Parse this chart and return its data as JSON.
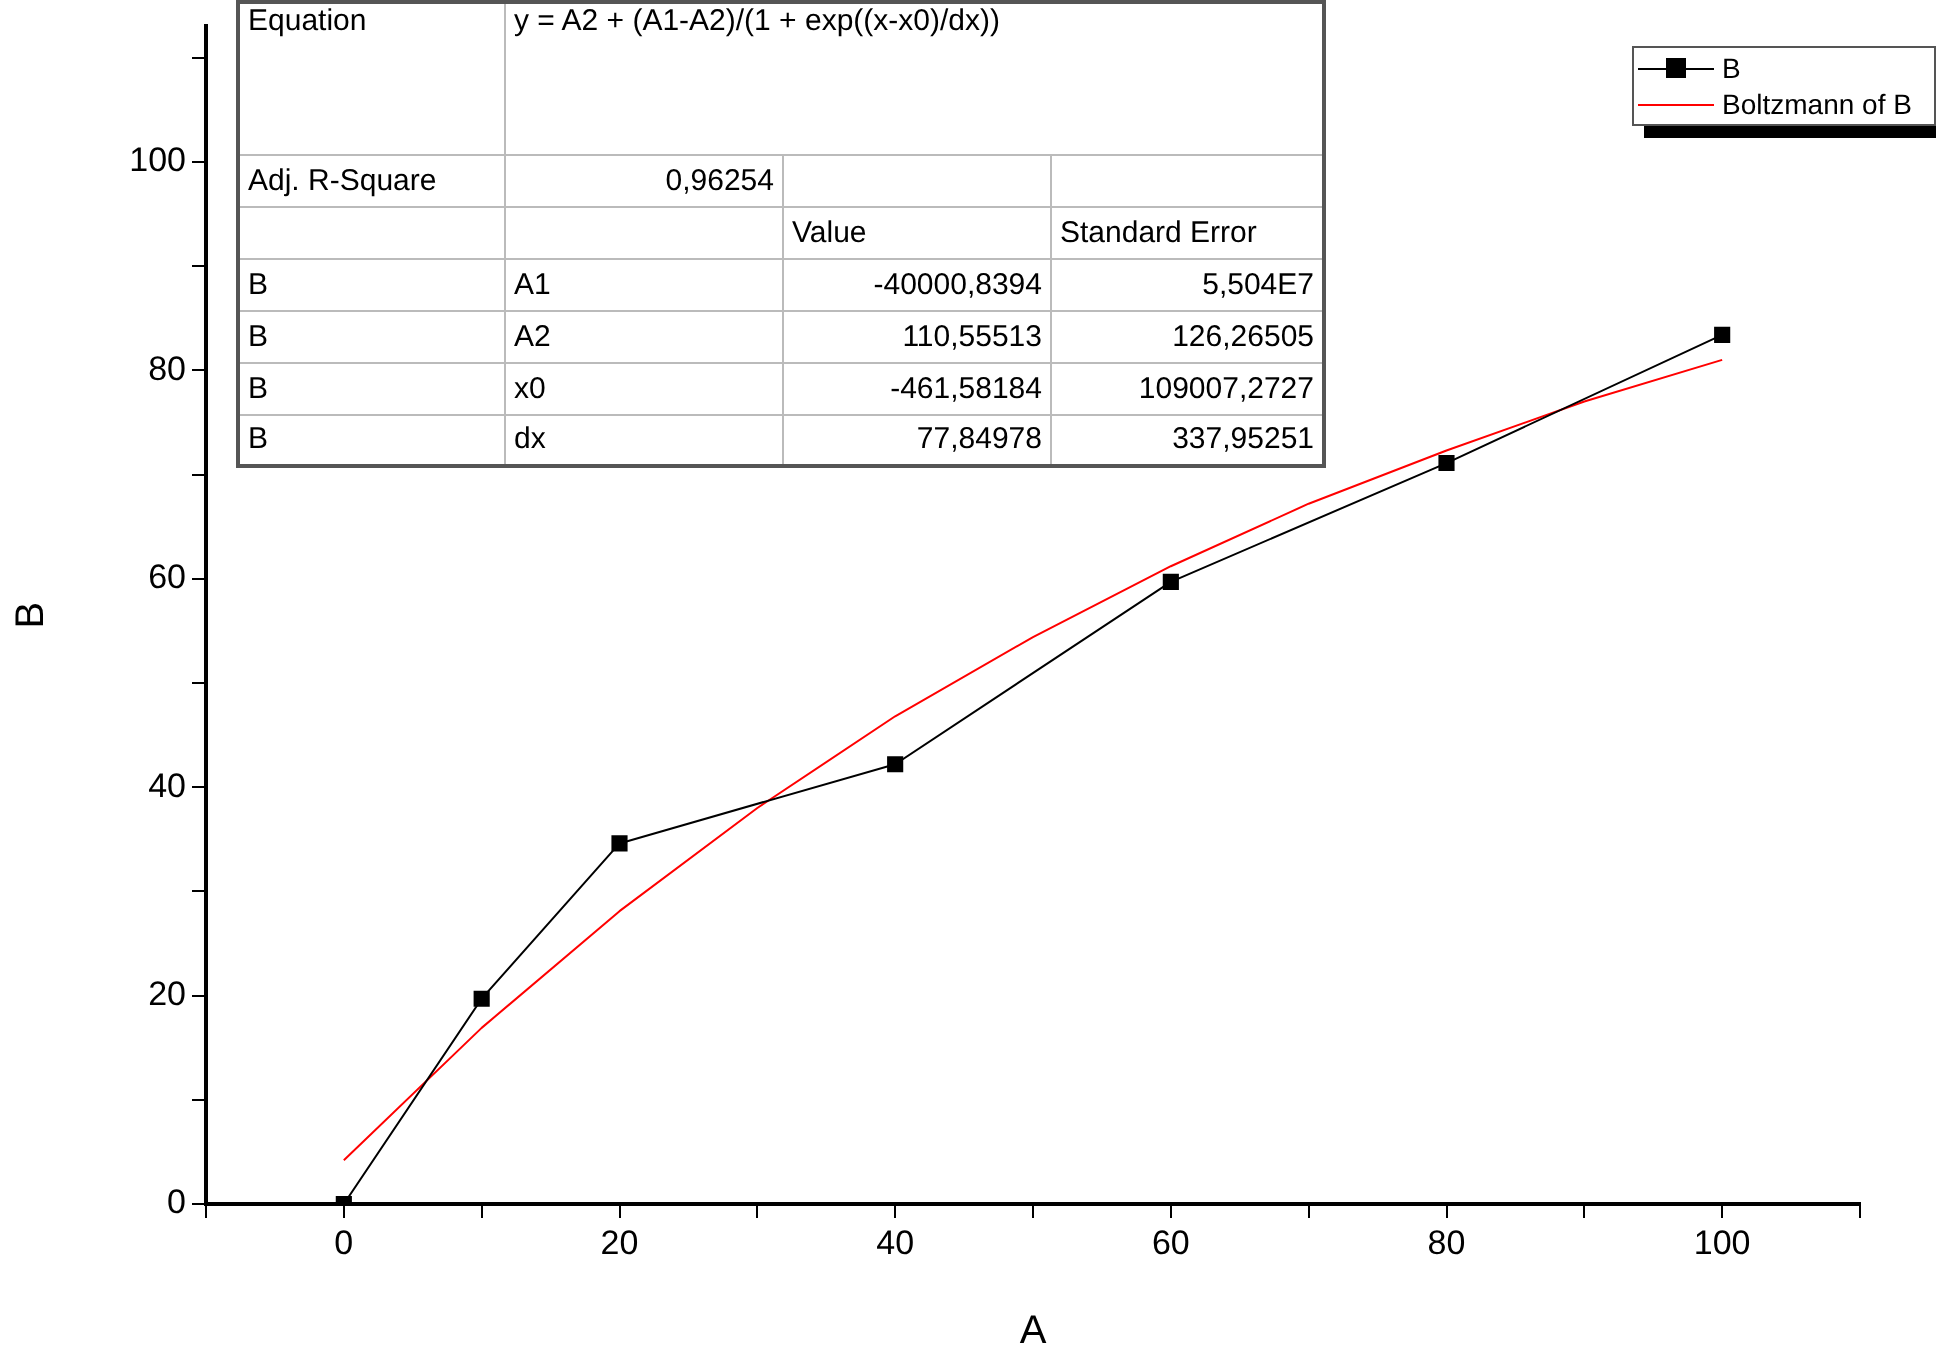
{
  "chart_data": {
    "type": "line",
    "xlabel": "A",
    "ylabel": "B",
    "xlim": [
      -10,
      110
    ],
    "ylim": [
      0,
      113
    ],
    "xticks": [
      {
        "value": -10,
        "label": null
      },
      0,
      {
        "value": 10,
        "label": null
      },
      20,
      {
        "value": 30,
        "label": null
      },
      40,
      {
        "value": 50,
        "label": null
      },
      60,
      {
        "value": 70,
        "label": null
      },
      80,
      {
        "value": 90,
        "label": null
      },
      100,
      {
        "value": 110,
        "label": null
      }
    ],
    "yticks": [
      0,
      {
        "value": 10,
        "label": null
      },
      20,
      {
        "value": 30,
        "label": null
      },
      40,
      {
        "value": 50,
        "label": null
      },
      60,
      {
        "value": 70,
        "label": null
      },
      80,
      {
        "value": 90,
        "label": null
      },
      100,
      {
        "value": 110,
        "label": null
      }
    ],
    "grid": false,
    "legend": "top right",
    "series": [
      {
        "name": "B",
        "color": "#000000",
        "marker": "square",
        "x": [
          0,
          10,
          20,
          40,
          60,
          80,
          100
        ],
        "values": [
          0,
          19.7,
          34.6,
          42.2,
          59.7,
          71.1,
          83.4
        ]
      },
      {
        "name": "Boltzmann of B",
        "color": "#ff0000",
        "marker": "none",
        "x": [
          0,
          10,
          20,
          30,
          40,
          50,
          60,
          70,
          80,
          90,
          100
        ],
        "values": [
          4.2,
          16.9,
          28.1,
          38.0,
          46.8,
          54.4,
          61.2,
          67.2,
          72.3,
          77.0,
          81.0
        ]
      }
    ],
    "annotations": [
      "Equation",
      "y = A2 + (A1-A2)/(1 + exp((x-x0)/dx))",
      "Adj. R-Square",
      "0,96254",
      "Value",
      "Standard Error",
      "B",
      "A1",
      "-40000,8394",
      "5,504E7",
      "B",
      "A2",
      "110,55513",
      "126,26505",
      "B",
      "x0",
      "-461,58184",
      "109007,2727",
      "B",
      "dx",
      "77,84978",
      "337,95251"
    ]
  }
}
